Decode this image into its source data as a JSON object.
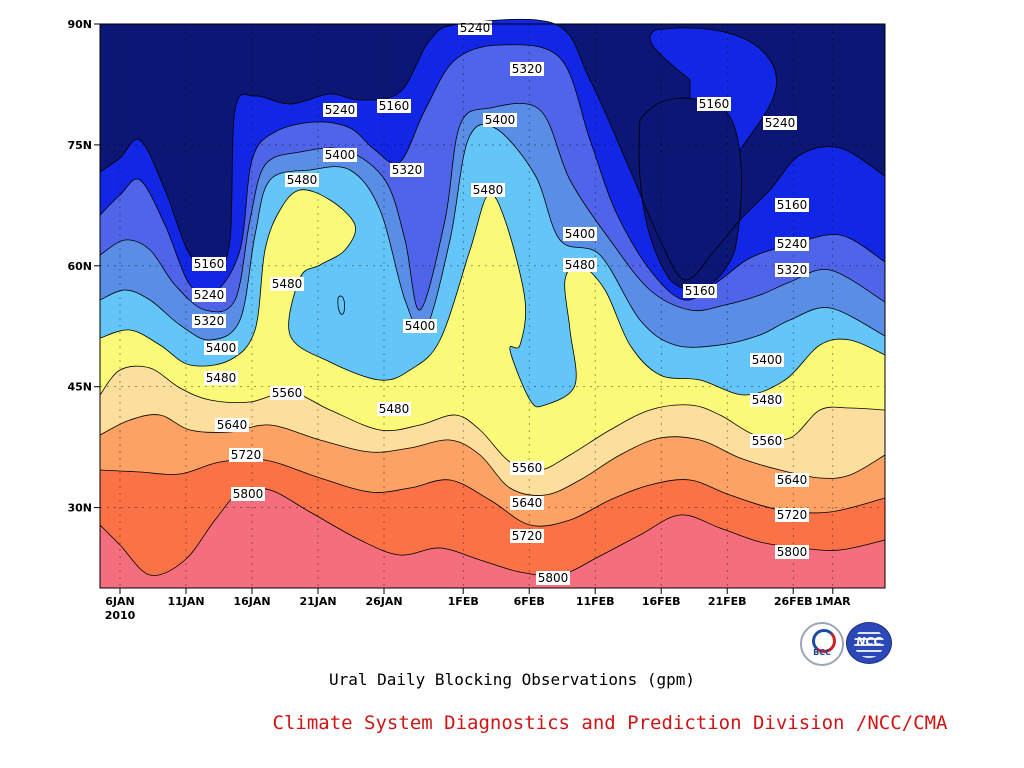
{
  "chart_data": {
    "type": "contour",
    "title": "Ural Daily Blocking Observations (gpm)",
    "x_tick_labels": [
      "6JAN",
      "11JAN",
      "16JAN",
      "21JAN",
      "26JAN",
      "1FEB",
      "6FEB",
      "11FEB",
      "16FEB",
      "21FEB",
      "26FEB",
      "1MAR"
    ],
    "x_year_label": "2010",
    "y_tick_labels": [
      "30N",
      "45N",
      "60N",
      "75N",
      "90N"
    ],
    "ylim_degrees": [
      20,
      90
    ],
    "contour_levels": [
      5160,
      5240,
      5320,
      5400,
      5480,
      5560,
      5640,
      5720,
      5800
    ],
    "fill_colors": [
      "#0c1674",
      "#1226e6",
      "#5064ea",
      "#5a8ee6",
      "#64c6f8",
      "#fafa78",
      "#fcdf9c",
      "#fca264",
      "#fa7246",
      "#f46e7e"
    ],
    "contour_labels": [
      {
        "value": 5240,
        "day": 32
      },
      {
        "value": 5320,
        "day": 37.5
      },
      {
        "value": 5160,
        "day": 28
      },
      {
        "value": 5240,
        "day": 21.5
      },
      {
        "value": 5400,
        "day": 37
      },
      {
        "value": 5400,
        "day": 21.5
      },
      {
        "value": 5320,
        "day": 28
      },
      {
        "value": 5480,
        "day": 18
      },
      {
        "value": 5480,
        "day": 32
      },
      {
        "value": 5160,
        "day": 47.5
      },
      {
        "value": 5240,
        "day": 53.5
      },
      {
        "value": 5160,
        "day": 55.5
      },
      {
        "value": 5240,
        "day": 55.5
      },
      {
        "value": 5320,
        "day": 55.5
      },
      {
        "value": 5400,
        "day": 42
      },
      {
        "value": 5480,
        "day": 42
      },
      {
        "value": 5160,
        "day": 45
      },
      {
        "value": 5160,
        "day": 11.5
      },
      {
        "value": 5240,
        "day": 11.5
      },
      {
        "value": 5320,
        "day": 11.5
      },
      {
        "value": 5400,
        "day": 12.5
      },
      {
        "value": 5480,
        "day": 12.5
      },
      {
        "value": 5560,
        "day": 17
      },
      {
        "value": 5480,
        "day": 18
      },
      {
        "value": 5400,
        "day": 29
      },
      {
        "value": 5480,
        "day": 26
      },
      {
        "value": 5640,
        "day": 13.5
      },
      {
        "value": 5720,
        "day": 13.5
      },
      {
        "value": 5800,
        "day": 15
      },
      {
        "value": 5560,
        "day": 38
      },
      {
        "value": 5640,
        "day": 38
      },
      {
        "value": 5720,
        "day": 38
      },
      {
        "value": 5800,
        "day": 39
      },
      {
        "value": 5400,
        "day": 53
      },
      {
        "value": 5480,
        "day": 54
      },
      {
        "value": 5560,
        "day": 54
      },
      {
        "value": 5640,
        "day": 55.5
      },
      {
        "value": 5720,
        "day": 55.5
      },
      {
        "value": 5800,
        "day": 55.5
      }
    ]
  },
  "credit": "Climate System Diagnostics and Prediction Division /NCC/CMA",
  "logos": {
    "bcc_text": "BCC",
    "ncc_text": "NCC"
  }
}
